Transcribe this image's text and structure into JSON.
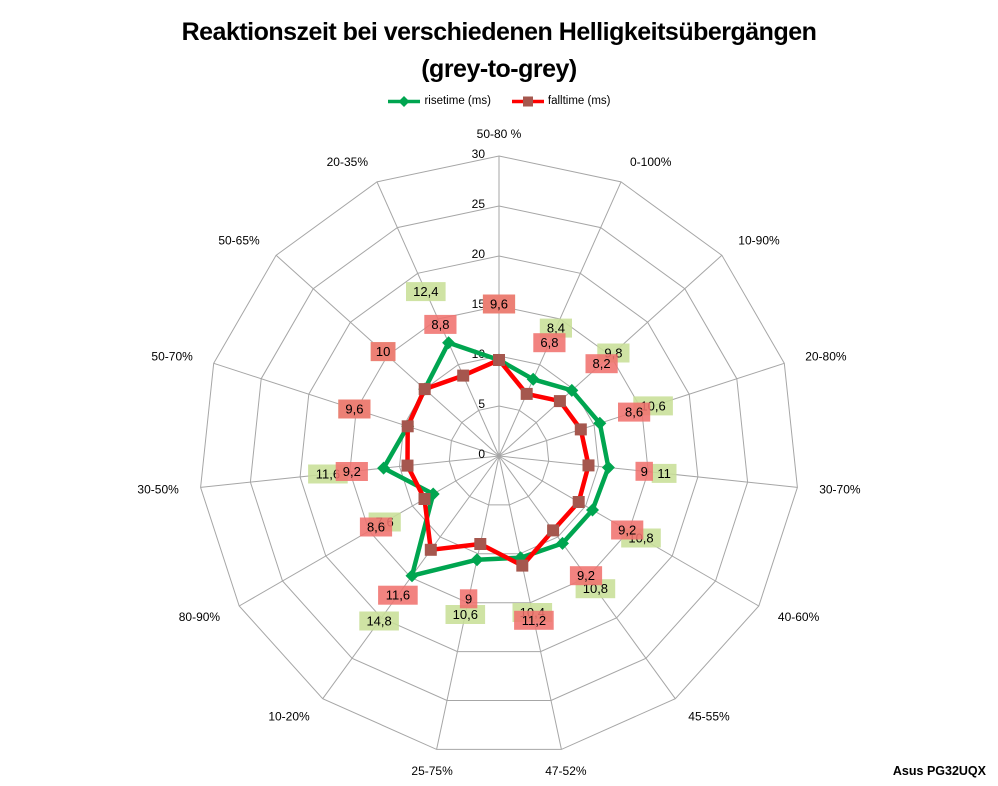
{
  "title": {
    "line1": "Reaktionszeit bei verschiedenen Helligkeitsübergängen",
    "line2": "(grey-to-grey)"
  },
  "footer": "Asus PG32UQX",
  "chart_data": {
    "type": "radar",
    "title": "Reaktionszeit bei verschiedenen Helligkeitsübergängen (grey-to-grey)",
    "categories": [
      "50-80 %",
      "0-100%",
      "10-90%",
      "20-80%",
      "30-70%",
      "40-60%",
      "45-55%",
      "47-52%",
      "25-75%",
      "10-20%",
      "80-90%",
      "30-50%",
      "50-70%",
      "50-65%",
      "20-35%"
    ],
    "series": [
      {
        "name": "risetime (ms)",
        "color": "#00A550",
        "marker": "diamond",
        "marker_color": "#00A550",
        "label_bg": "#C8DF97",
        "values": [
          9.6,
          8.4,
          9.8,
          10.6,
          11,
          10.8,
          10.8,
          10.4,
          10.6,
          14.8,
          7.6,
          11.6,
          9.6,
          10,
          12.4
        ],
        "labels": [
          "9,6",
          "8,4",
          "9,8",
          "10,6",
          "11",
          "10,8",
          "10,8",
          "10,4",
          "10,6",
          "14,8",
          "7,6",
          "11,6",
          "9,6",
          "10",
          "12,4"
        ]
      },
      {
        "name": "falltime (ms)",
        "color": "#FF0000",
        "marker": "square",
        "marker_color": "#A5574E",
        "label_bg": "#F0726E",
        "values": [
          9.6,
          6.8,
          8.2,
          8.6,
          9,
          9.2,
          9.2,
          11.2,
          9,
          11.6,
          8.6,
          9.2,
          9.6,
          10,
          8.8
        ],
        "labels": [
          "9,6",
          "6,8",
          "8,2",
          "8,6",
          "9",
          "9,2",
          "9,2",
          "11,2",
          "9",
          "11,6",
          "8,6",
          "9,2",
          "9,6",
          "10",
          "8,8"
        ]
      }
    ],
    "axis": {
      "min": 0,
      "max": 30,
      "step": 5,
      "tick_labels": [
        "0",
        "5",
        "10",
        "15",
        "20",
        "25",
        "30"
      ]
    },
    "grid": true,
    "grid_color": "#A6A6A6",
    "legend_position": "top",
    "start_axis": "top",
    "direction": "clockwise"
  }
}
